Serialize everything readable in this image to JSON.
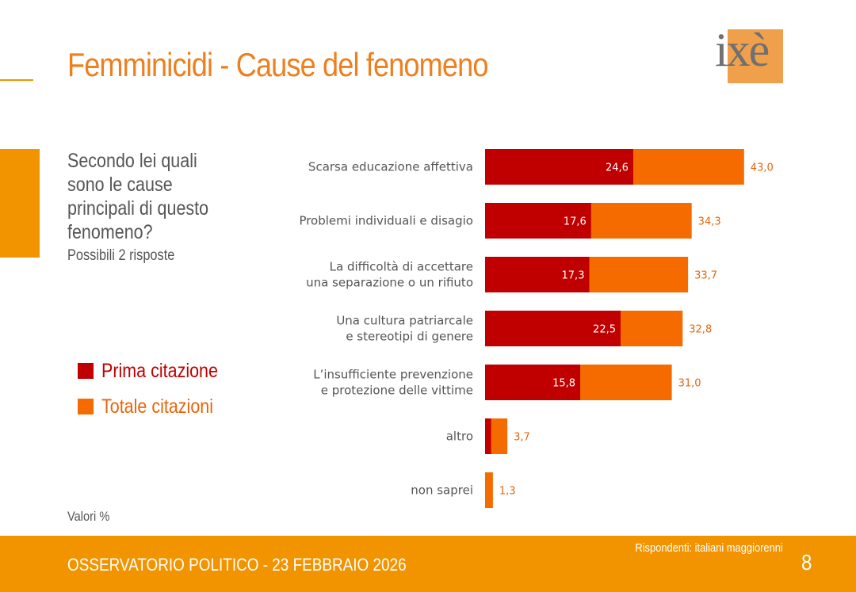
{
  "header": {
    "title": "Femminicidi - Cause del fenomeno",
    "logo_text": "ixè"
  },
  "question": {
    "text": "Secondo lei quali sono le cause principali di questo fenomeno?",
    "sub": "Possibili 2 risposte"
  },
  "legend": {
    "first_label": "Prima citazione",
    "total_label": "Totale citazioni"
  },
  "note": "Valori %",
  "footer": {
    "left": "OSSERVATORIO POLITICO - 23 FEBBRAIO 2026",
    "respondents": "Rispondenti: italiani maggiorenni",
    "page": "8"
  },
  "colors": {
    "accent": "#f29400",
    "title": "#ee7f1e",
    "first": "#c00000",
    "total": "#f56b00",
    "total_text": "#e8640a",
    "text": "#555555"
  },
  "chart_data": {
    "type": "bar",
    "orientation": "horizontal",
    "stacked_overlay": true,
    "xlim": [
      0,
      50
    ],
    "categories": [
      [
        "Scarsa educazione affettiva"
      ],
      [
        "Problemi individuali e disagio"
      ],
      [
        "La difficoltà di accettare",
        "una separazione o un rifiuto"
      ],
      [
        "Una cultura patriarcale",
        "e stereotipi di genere"
      ],
      [
        "L’insufficiente prevenzione",
        "e protezione delle vittime"
      ],
      [
        "altro"
      ],
      [
        "non saprei"
      ]
    ],
    "series": [
      {
        "name": "Prima citazione",
        "values": [
          24.6,
          17.6,
          17.3,
          22.5,
          15.8,
          1.0,
          0
        ],
        "labels": [
          "24,6",
          "17,6",
          "17,3",
          "22,5",
          "15,8",
          "",
          ""
        ]
      },
      {
        "name": "Totale citazioni",
        "values": [
          43.0,
          34.3,
          33.7,
          32.8,
          31.0,
          3.7,
          1.3
        ],
        "labels": [
          "43,0",
          "34,3",
          "33,7",
          "32,8",
          "31,0",
          "3,7",
          "1,3"
        ]
      }
    ]
  }
}
